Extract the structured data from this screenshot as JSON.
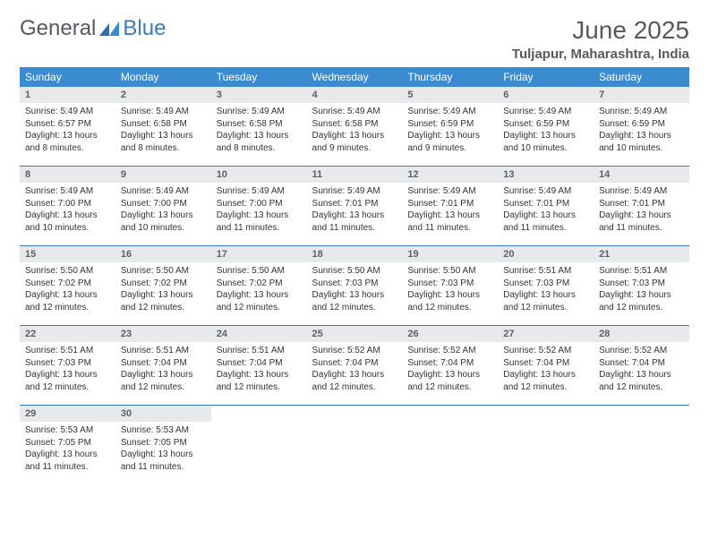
{
  "brand": {
    "word1": "General",
    "word2": "Blue"
  },
  "title": "June 2025",
  "location": "Tuljapur, Maharashtra, India",
  "colors": {
    "header_bg": "#3a8bd0",
    "header_text": "#ffffff",
    "daynum_bg": "#e8e9ea",
    "rule": "#3a7bbf",
    "title_color": "#565b60",
    "logo_gray": "#555a5f",
    "logo_blue": "#3a7bbf"
  },
  "weekdays": [
    "Sunday",
    "Monday",
    "Tuesday",
    "Wednesday",
    "Thursday",
    "Friday",
    "Saturday"
  ],
  "days": [
    {
      "n": 1,
      "sr": "5:49 AM",
      "ss": "6:57 PM",
      "dl": "13 hours and 8 minutes."
    },
    {
      "n": 2,
      "sr": "5:49 AM",
      "ss": "6:58 PM",
      "dl": "13 hours and 8 minutes."
    },
    {
      "n": 3,
      "sr": "5:49 AM",
      "ss": "6:58 PM",
      "dl": "13 hours and 8 minutes."
    },
    {
      "n": 4,
      "sr": "5:49 AM",
      "ss": "6:58 PM",
      "dl": "13 hours and 9 minutes."
    },
    {
      "n": 5,
      "sr": "5:49 AM",
      "ss": "6:59 PM",
      "dl": "13 hours and 9 minutes."
    },
    {
      "n": 6,
      "sr": "5:49 AM",
      "ss": "6:59 PM",
      "dl": "13 hours and 10 minutes."
    },
    {
      "n": 7,
      "sr": "5:49 AM",
      "ss": "6:59 PM",
      "dl": "13 hours and 10 minutes."
    },
    {
      "n": 8,
      "sr": "5:49 AM",
      "ss": "7:00 PM",
      "dl": "13 hours and 10 minutes."
    },
    {
      "n": 9,
      "sr": "5:49 AM",
      "ss": "7:00 PM",
      "dl": "13 hours and 10 minutes."
    },
    {
      "n": 10,
      "sr": "5:49 AM",
      "ss": "7:00 PM",
      "dl": "13 hours and 11 minutes."
    },
    {
      "n": 11,
      "sr": "5:49 AM",
      "ss": "7:01 PM",
      "dl": "13 hours and 11 minutes."
    },
    {
      "n": 12,
      "sr": "5:49 AM",
      "ss": "7:01 PM",
      "dl": "13 hours and 11 minutes."
    },
    {
      "n": 13,
      "sr": "5:49 AM",
      "ss": "7:01 PM",
      "dl": "13 hours and 11 minutes."
    },
    {
      "n": 14,
      "sr": "5:49 AM",
      "ss": "7:01 PM",
      "dl": "13 hours and 11 minutes."
    },
    {
      "n": 15,
      "sr": "5:50 AM",
      "ss": "7:02 PM",
      "dl": "13 hours and 12 minutes."
    },
    {
      "n": 16,
      "sr": "5:50 AM",
      "ss": "7:02 PM",
      "dl": "13 hours and 12 minutes."
    },
    {
      "n": 17,
      "sr": "5:50 AM",
      "ss": "7:02 PM",
      "dl": "13 hours and 12 minutes."
    },
    {
      "n": 18,
      "sr": "5:50 AM",
      "ss": "7:03 PM",
      "dl": "13 hours and 12 minutes."
    },
    {
      "n": 19,
      "sr": "5:50 AM",
      "ss": "7:03 PM",
      "dl": "13 hours and 12 minutes."
    },
    {
      "n": 20,
      "sr": "5:51 AM",
      "ss": "7:03 PM",
      "dl": "13 hours and 12 minutes."
    },
    {
      "n": 21,
      "sr": "5:51 AM",
      "ss": "7:03 PM",
      "dl": "13 hours and 12 minutes."
    },
    {
      "n": 22,
      "sr": "5:51 AM",
      "ss": "7:03 PM",
      "dl": "13 hours and 12 minutes."
    },
    {
      "n": 23,
      "sr": "5:51 AM",
      "ss": "7:04 PM",
      "dl": "13 hours and 12 minutes."
    },
    {
      "n": 24,
      "sr": "5:51 AM",
      "ss": "7:04 PM",
      "dl": "13 hours and 12 minutes."
    },
    {
      "n": 25,
      "sr": "5:52 AM",
      "ss": "7:04 PM",
      "dl": "13 hours and 12 minutes."
    },
    {
      "n": 26,
      "sr": "5:52 AM",
      "ss": "7:04 PM",
      "dl": "13 hours and 12 minutes."
    },
    {
      "n": 27,
      "sr": "5:52 AM",
      "ss": "7:04 PM",
      "dl": "13 hours and 12 minutes."
    },
    {
      "n": 28,
      "sr": "5:52 AM",
      "ss": "7:04 PM",
      "dl": "13 hours and 12 minutes."
    },
    {
      "n": 29,
      "sr": "5:53 AM",
      "ss": "7:05 PM",
      "dl": "13 hours and 11 minutes."
    },
    {
      "n": 30,
      "sr": "5:53 AM",
      "ss": "7:05 PM",
      "dl": "13 hours and 11 minutes."
    }
  ],
  "labels": {
    "sunrise": "Sunrise:",
    "sunset": "Sunset:",
    "daylight": "Daylight:"
  },
  "layout": {
    "first_weekday_index": 0,
    "total_cells": 35
  }
}
